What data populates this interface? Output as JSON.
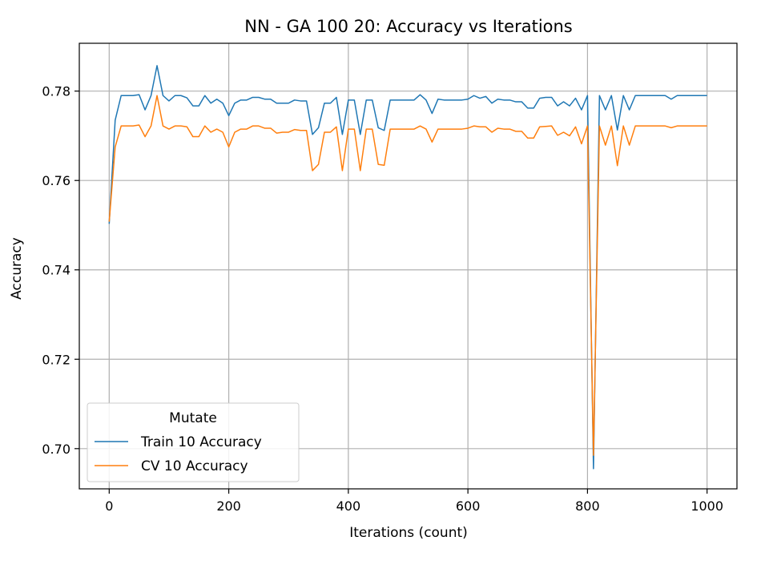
{
  "chart_data": {
    "type": "line",
    "title": "NN - GA 100 20: Accuracy vs Iterations",
    "xlabel": "Iterations (count)",
    "ylabel": "Accuracy",
    "xlim": [
      -50,
      1050
    ],
    "ylim": [
      0.691,
      0.7907
    ],
    "xticks": [
      0,
      200,
      400,
      600,
      800,
      1000
    ],
    "yticks": [
      0.7,
      0.72,
      0.74,
      0.76,
      0.78
    ],
    "ytick_labels": [
      "0.70",
      "0.72",
      "0.74",
      "0.76",
      "0.78"
    ],
    "grid": true,
    "legend": {
      "title": "Mutate",
      "position": "lower-left"
    },
    "x": [
      0,
      10,
      20,
      30,
      40,
      50,
      60,
      70,
      80,
      90,
      100,
      110,
      120,
      130,
      140,
      150,
      160,
      170,
      180,
      190,
      200,
      210,
      220,
      230,
      240,
      250,
      260,
      270,
      280,
      290,
      300,
      310,
      320,
      330,
      340,
      350,
      360,
      370,
      380,
      390,
      400,
      410,
      420,
      430,
      440,
      450,
      460,
      470,
      480,
      490,
      500,
      510,
      520,
      530,
      540,
      550,
      560,
      570,
      580,
      590,
      600,
      610,
      620,
      630,
      640,
      650,
      660,
      670,
      680,
      690,
      700,
      710,
      720,
      730,
      740,
      750,
      760,
      770,
      780,
      790,
      800,
      810,
      820,
      830,
      840,
      850,
      860,
      870,
      880,
      890,
      900,
      910,
      920,
      930,
      940,
      950,
      960,
      970,
      980,
      990,
      1000
    ],
    "series": [
      {
        "name": "Train 10 Accuracy",
        "color": "#1f77b4",
        "values": [
          0.7503,
          0.7735,
          0.779,
          0.779,
          0.779,
          0.7792,
          0.7758,
          0.779,
          0.7857,
          0.779,
          0.7778,
          0.779,
          0.779,
          0.7785,
          0.7767,
          0.7767,
          0.779,
          0.7773,
          0.7782,
          0.7773,
          0.7745,
          0.7773,
          0.778,
          0.778,
          0.7786,
          0.7786,
          0.7782,
          0.7782,
          0.7773,
          0.7773,
          0.7773,
          0.778,
          0.7778,
          0.7778,
          0.7703,
          0.7718,
          0.7773,
          0.7773,
          0.7786,
          0.7703,
          0.778,
          0.778,
          0.7703,
          0.778,
          0.778,
          0.7718,
          0.7712,
          0.778,
          0.778,
          0.778,
          0.778,
          0.778,
          0.7792,
          0.778,
          0.775,
          0.7782,
          0.778,
          0.778,
          0.778,
          0.778,
          0.7782,
          0.779,
          0.7784,
          0.7788,
          0.7773,
          0.7782,
          0.778,
          0.778,
          0.7776,
          0.7776,
          0.7762,
          0.7762,
          0.7784,
          0.7786,
          0.7786,
          0.7767,
          0.7776,
          0.7767,
          0.7784,
          0.7758,
          0.779,
          0.6955,
          0.779,
          0.7758,
          0.779,
          0.7713,
          0.779,
          0.7758,
          0.779,
          0.779,
          0.779,
          0.779,
          0.779,
          0.779,
          0.7782,
          0.779,
          0.779,
          0.779,
          0.779,
          0.779,
          0.779
        ]
      },
      {
        "name": "CV 10 Accuracy",
        "color": "#ff7f0e",
        "values": [
          0.7508,
          0.7675,
          0.7722,
          0.7722,
          0.7722,
          0.7724,
          0.7698,
          0.7722,
          0.779,
          0.7722,
          0.7715,
          0.7722,
          0.7722,
          0.772,
          0.7698,
          0.7698,
          0.7722,
          0.7708,
          0.7715,
          0.7708,
          0.7675,
          0.7708,
          0.7715,
          0.7715,
          0.7722,
          0.7722,
          0.7717,
          0.7717,
          0.7706,
          0.7708,
          0.7708,
          0.7714,
          0.7712,
          0.7712,
          0.7622,
          0.7636,
          0.7708,
          0.7708,
          0.772,
          0.7622,
          0.7715,
          0.7715,
          0.7622,
          0.7715,
          0.7715,
          0.7636,
          0.7634,
          0.7715,
          0.7715,
          0.7715,
          0.7715,
          0.7715,
          0.7722,
          0.7715,
          0.7686,
          0.7715,
          0.7715,
          0.7715,
          0.7715,
          0.7715,
          0.7717,
          0.7722,
          0.772,
          0.772,
          0.7708,
          0.7717,
          0.7715,
          0.7715,
          0.771,
          0.771,
          0.7695,
          0.7695,
          0.772,
          0.7721,
          0.7722,
          0.7701,
          0.7708,
          0.77,
          0.772,
          0.7682,
          0.7722,
          0.6985,
          0.7722,
          0.7679,
          0.7722,
          0.7633,
          0.7722,
          0.7679,
          0.7722,
          0.7722,
          0.7722,
          0.7722,
          0.7722,
          0.7722,
          0.7718,
          0.7722,
          0.7722,
          0.7722,
          0.7722,
          0.7722,
          0.7722
        ]
      }
    ]
  }
}
